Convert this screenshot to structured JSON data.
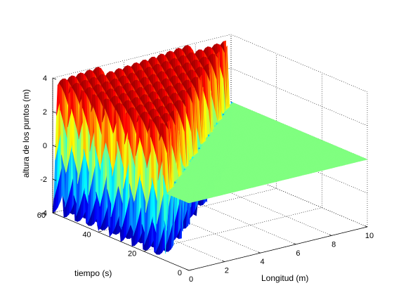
{
  "chart_data": {
    "type": "surface",
    "title": "",
    "xlabel": "Longitud (m)",
    "ylabel": "tiempo (s)",
    "zlabel": "altura de los puntos (m)",
    "xlim": [
      0,
      10
    ],
    "ylim": [
      0,
      60
    ],
    "zlim": [
      -4,
      4
    ],
    "x_ticks": [
      "0",
      "2",
      "4",
      "6",
      "8",
      "10"
    ],
    "y_ticks": [
      "0",
      "20",
      "40",
      "60"
    ],
    "z_ticks": [
      "-4",
      "-2",
      "0",
      "2",
      "4"
    ],
    "grid": true,
    "colormap": "jet",
    "surface": {
      "description": "traveling wave",
      "amplitude": 4,
      "z_at_x10": 0,
      "wave_fronts": [
        {
          "x": 0,
          "t": 10
        },
        {
          "x": 10,
          "t": 60
        }
      ],
      "temporal_period_s": 5,
      "spatial_wavelength_m": 5,
      "crest_times_at_x0_s": [
        12.5,
        17.5,
        22.5,
        27.5,
        32.5,
        37.5,
        42.5,
        47.5,
        52.5,
        57.5
      ],
      "crest_positions_at_t60_m": [
        1.25,
        3.75,
        6.25,
        8.75
      ]
    }
  }
}
